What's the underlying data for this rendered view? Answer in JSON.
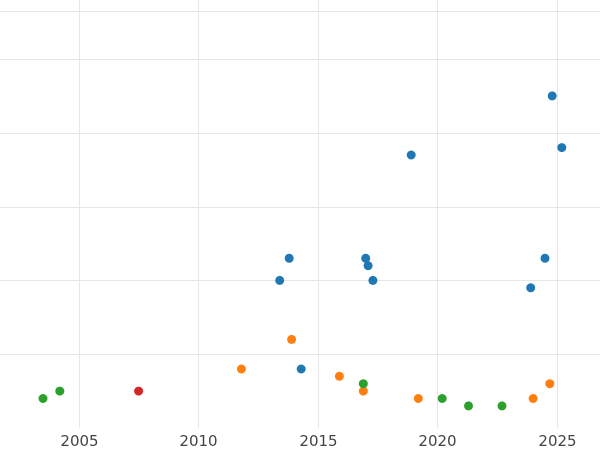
{
  "chart_data": {
    "type": "scatter",
    "title": "",
    "xlabel": "",
    "ylabel": "",
    "xlim": [
      2001.7,
      2026.8
    ],
    "ylim": [
      0,
      5.8
    ],
    "x_ticks": [
      2005,
      2010,
      2015,
      2020,
      2025
    ],
    "x_tick_labels": [
      "2005",
      "2010",
      "2015",
      "2020",
      "2025"
    ],
    "y_gridlines": [
      1,
      2,
      3,
      4,
      5
    ],
    "grid": true,
    "legend": false,
    "series": [
      {
        "color": "#1f77b4",
        "points": [
          {
            "x": 2024.8,
            "y": 4.5
          },
          {
            "x": 2025.2,
            "y": 3.8
          },
          {
            "x": 2018.9,
            "y": 3.7
          },
          {
            "x": 2024.5,
            "y": 2.3
          },
          {
            "x": 2013.8,
            "y": 2.3
          },
          {
            "x": 2017.0,
            "y": 2.3
          },
          {
            "x": 2017.1,
            "y": 2.2
          },
          {
            "x": 2013.4,
            "y": 2.0
          },
          {
            "x": 2017.3,
            "y": 2.0
          },
          {
            "x": 2023.9,
            "y": 1.9
          },
          {
            "x": 2014.3,
            "y": 0.8
          }
        ]
      },
      {
        "color": "#ff7f0e",
        "points": [
          {
            "x": 2013.9,
            "y": 1.2
          },
          {
            "x": 2011.8,
            "y": 0.8
          },
          {
            "x": 2015.9,
            "y": 0.7
          },
          {
            "x": 2024.7,
            "y": 0.6
          },
          {
            "x": 2016.9,
            "y": 0.5
          },
          {
            "x": 2019.2,
            "y": 0.4
          },
          {
            "x": 2024.0,
            "y": 0.4
          }
        ]
      },
      {
        "color": "#2ca02c",
        "points": [
          {
            "x": 2003.5,
            "y": 0.4
          },
          {
            "x": 2004.2,
            "y": 0.5
          },
          {
            "x": 2016.9,
            "y": 0.6
          },
          {
            "x": 2020.2,
            "y": 0.4
          },
          {
            "x": 2021.3,
            "y": 0.3
          },
          {
            "x": 2022.7,
            "y": 0.3
          }
        ]
      },
      {
        "color": "#d62728",
        "points": [
          {
            "x": 2007.5,
            "y": 0.5
          }
        ]
      }
    ]
  }
}
